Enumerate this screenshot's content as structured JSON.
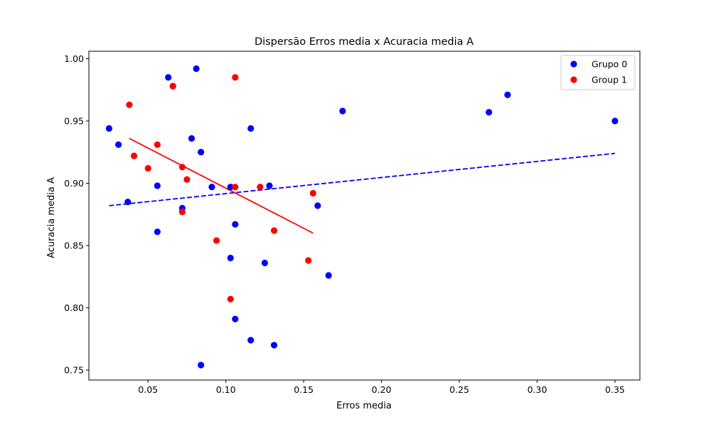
{
  "chart_data": {
    "type": "scatter",
    "title": "Dispersão Erros media x Acuracia media A",
    "xlabel": "Erros media",
    "ylabel": "Acuracia media A",
    "xlim": [
      0.012,
      0.366
    ],
    "ylim": [
      0.742,
      1.006
    ],
    "xticks": [
      "0.05",
      "0.10",
      "0.15",
      "0.20",
      "0.25",
      "0.30",
      "0.35"
    ],
    "yticks": [
      "0.75",
      "0.80",
      "0.85",
      "0.90",
      "0.95",
      "1.00"
    ],
    "grid": false,
    "legend_position": "top-right",
    "series": [
      {
        "name": "Grupo 0",
        "color": "#0000ff",
        "points": [
          [
            0.025,
            0.944
          ],
          [
            0.031,
            0.931
          ],
          [
            0.037,
            0.885
          ],
          [
            0.056,
            0.898
          ],
          [
            0.056,
            0.861
          ],
          [
            0.063,
            0.985
          ],
          [
            0.066,
            0.978
          ],
          [
            0.072,
            0.88
          ],
          [
            0.078,
            0.936
          ],
          [
            0.081,
            0.992
          ],
          [
            0.084,
            0.925
          ],
          [
            0.084,
            0.754
          ],
          [
            0.091,
            0.897
          ],
          [
            0.103,
            0.84
          ],
          [
            0.103,
            0.897
          ],
          [
            0.106,
            0.867
          ],
          [
            0.106,
            0.791
          ],
          [
            0.116,
            0.944
          ],
          [
            0.116,
            0.774
          ],
          [
            0.125,
            0.836
          ],
          [
            0.128,
            0.898
          ],
          [
            0.131,
            0.77
          ],
          [
            0.159,
            0.882
          ],
          [
            0.166,
            0.826
          ],
          [
            0.175,
            0.958
          ],
          [
            0.269,
            0.957
          ],
          [
            0.281,
            0.971
          ],
          [
            0.35,
            0.95
          ]
        ],
        "trend": {
          "style": "dashed",
          "x": [
            0.025,
            0.35
          ],
          "y": [
            0.882,
            0.924
          ]
        }
      },
      {
        "name": "Group 1",
        "color": "#ff0000",
        "points": [
          [
            0.038,
            0.963
          ],
          [
            0.041,
            0.922
          ],
          [
            0.05,
            0.912
          ],
          [
            0.056,
            0.931
          ],
          [
            0.066,
            0.978
          ],
          [
            0.072,
            0.913
          ],
          [
            0.072,
            0.877
          ],
          [
            0.075,
            0.903
          ],
          [
            0.094,
            0.854
          ],
          [
            0.103,
            0.807
          ],
          [
            0.106,
            0.985
          ],
          [
            0.106,
            0.897
          ],
          [
            0.122,
            0.897
          ],
          [
            0.131,
            0.862
          ],
          [
            0.153,
            0.838
          ],
          [
            0.156,
            0.892
          ]
        ],
        "trend": {
          "style": "solid",
          "x": [
            0.038,
            0.156
          ],
          "y": [
            0.936,
            0.86
          ]
        }
      }
    ]
  }
}
